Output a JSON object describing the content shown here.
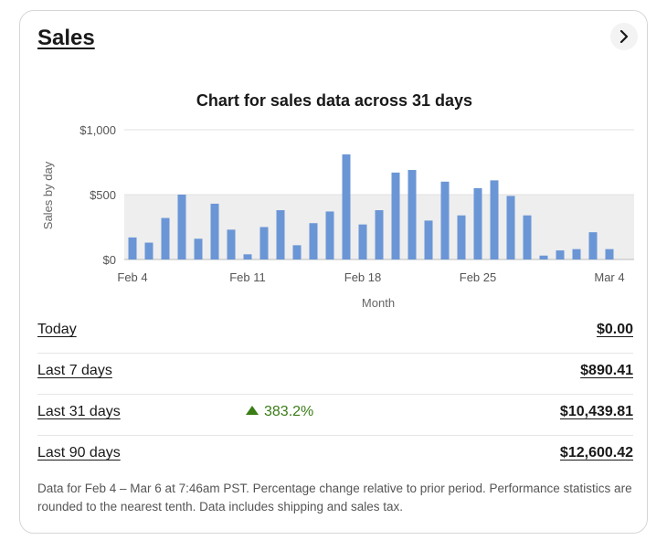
{
  "card": {
    "title": "Sales",
    "open_icon": "chevron-right-icon"
  },
  "chart_data": {
    "type": "bar",
    "title": "Chart for sales data across 31 days",
    "xlabel": "Month",
    "ylabel": "Sales by day",
    "ylim": [
      0,
      1000
    ],
    "yticks": [
      "$1,000",
      "$500",
      "$0"
    ],
    "xticks": [
      "Feb 4",
      "Feb 11",
      "Feb 18",
      "Feb 25",
      "Mar 4"
    ],
    "categories": [
      "Feb 4",
      "Feb 5",
      "Feb 6",
      "Feb 7",
      "Feb 8",
      "Feb 9",
      "Feb 10",
      "Feb 11",
      "Feb 12",
      "Feb 13",
      "Feb 14",
      "Feb 15",
      "Feb 16",
      "Feb 17",
      "Feb 18",
      "Feb 19",
      "Feb 20",
      "Feb 21",
      "Feb 22",
      "Feb 23",
      "Feb 24",
      "Feb 25",
      "Feb 26",
      "Feb 27",
      "Feb 28",
      "Feb 29",
      "Mar 1",
      "Mar 2",
      "Mar 3",
      "Mar 4",
      "Mar 5"
    ],
    "values": [
      170,
      130,
      320,
      500,
      160,
      430,
      230,
      40,
      250,
      380,
      110,
      280,
      370,
      810,
      270,
      380,
      670,
      690,
      300,
      600,
      340,
      550,
      610,
      490,
      340,
      30,
      70,
      80,
      210,
      80,
      0
    ],
    "bar_color": "#6b96d6",
    "band_color": "#eeeeee"
  },
  "periods": [
    {
      "label": "Today",
      "value": "$0.00",
      "change": ""
    },
    {
      "label": "Last 7 days",
      "value": "$890.41",
      "change": ""
    },
    {
      "label": "Last 31 days",
      "value": "$10,439.81",
      "change": "383.2%"
    },
    {
      "label": "Last 90 days",
      "value": "$12,600.42",
      "change": ""
    }
  ],
  "footnote": "Data for Feb 4 – Mar 6 at 7:46am PST. Percentage change relative to prior period. Performance statistics are rounded to the nearest tenth. Data includes shipping and sales tax.",
  "colors": {
    "positive": "#3a7d16",
    "text": "#191919"
  }
}
